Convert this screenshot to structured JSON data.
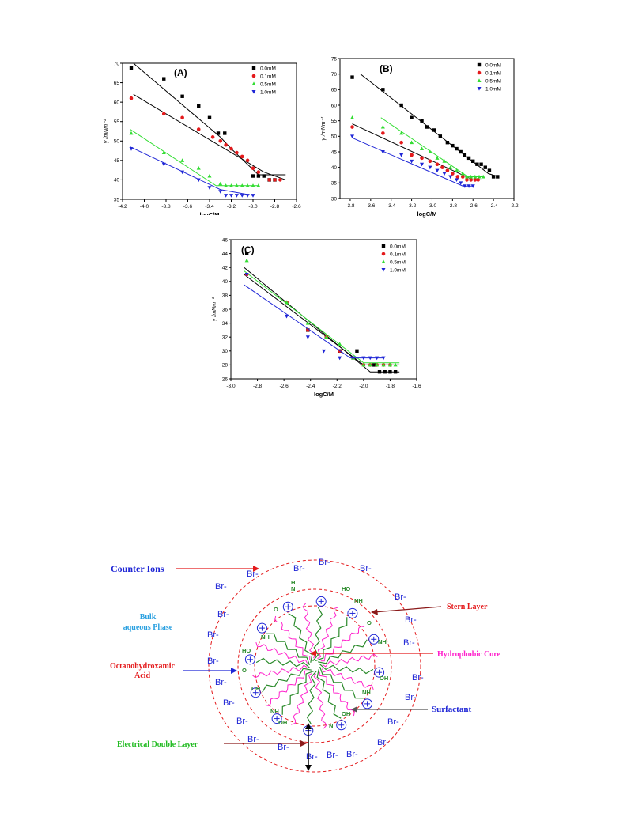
{
  "chart_data": [
    {
      "type": "scatter",
      "panel_label": "(A)",
      "xlabel": "logC/M",
      "ylabel": "γ /mNm⁻¹",
      "xlim": [
        -4.2,
        -2.6
      ],
      "ylim": [
        35,
        70
      ],
      "xticks": [
        "-4.2",
        "-4.0",
        "-3.8",
        "-3.6",
        "-3.4",
        "-3.2",
        "-3.0",
        "-2.8",
        "-2.6"
      ],
      "yticks": [
        "35",
        "40",
        "45",
        "50",
        "55",
        "60",
        "65",
        "70"
      ],
      "legend_position": "top-right",
      "series": [
        {
          "name": "0.0mM",
          "color": "#000000",
          "marker": "square",
          "x": [
            -4.12,
            -3.82,
            -3.65,
            -3.5,
            -3.4,
            -3.32,
            -3.26,
            -3.0,
            -2.95,
            -2.9,
            -2.85,
            -2.8
          ],
          "y": [
            68.8,
            66,
            61.5,
            59,
            56,
            52,
            52,
            41,
            41,
            41,
            40,
            40
          ],
          "fit": [
            [
              -4.1,
              70
            ],
            [
              -3.3,
              51
            ],
            [
              -3.2,
              48
            ],
            [
              -2.95,
              41.3
            ],
            [
              -2.7,
              41.3
            ]
          ]
        },
        {
          "name": "0.1mM",
          "color": "#e41a1c",
          "marker": "circle",
          "x": [
            -4.12,
            -3.82,
            -3.65,
            -3.5,
            -3.37,
            -3.3,
            -3.25,
            -3.2,
            -3.15,
            -3.1,
            -3.05,
            -3.0,
            -2.95,
            -2.85,
            -2.8,
            -2.75
          ],
          "y": [
            61,
            57,
            56,
            53,
            51,
            50,
            49,
            48,
            47,
            46,
            45,
            43,
            42,
            40,
            40,
            40
          ],
          "fit": [
            [
              -4.1,
              62
            ],
            [
              -2.9,
              42
            ],
            [
              -2.7,
              40
            ]
          ]
        },
        {
          "name": "0.5mM",
          "color": "#33dd33",
          "marker": "triangle-up",
          "x": [
            -4.12,
            -3.82,
            -3.65,
            -3.5,
            -3.4,
            -3.3,
            -3.25,
            -3.2,
            -3.15,
            -3.1,
            -3.05,
            -3.0,
            -2.95
          ],
          "y": [
            52,
            47,
            45,
            43,
            41,
            39,
            38.5,
            38.5,
            38.5,
            38.5,
            38.5,
            38.5,
            38.5
          ],
          "fit": [
            [
              -4.13,
              53
            ],
            [
              -3.34,
              38.5
            ],
            [
              -2.95,
              38.5
            ]
          ]
        },
        {
          "name": "1.0mM",
          "color": "#1f26d6",
          "marker": "triangle-down",
          "x": [
            -4.12,
            -3.82,
            -3.65,
            -3.5,
            -3.4,
            -3.3,
            -3.25,
            -3.2,
            -3.15,
            -3.1,
            -3.05,
            -3.0
          ],
          "y": [
            48,
            44,
            42,
            40,
            38,
            37,
            36,
            36,
            36,
            36,
            36,
            36
          ],
          "fit": [
            [
              -4.13,
              48.5
            ],
            [
              -3.3,
              37.5
            ],
            [
              -3.0,
              36
            ]
          ]
        }
      ]
    },
    {
      "type": "scatter",
      "panel_label": "(B)",
      "xlabel": "logC/M",
      "ylabel": "γ /mNm⁻¹",
      "xlim": [
        -3.9,
        -2.2
      ],
      "ylim": [
        30,
        75
      ],
      "xticks": [
        "-3.8",
        "-3.6",
        "-3.4",
        "-3.2",
        "-3.0",
        "-2.8",
        "-2.6",
        "-2.4",
        "-2.2"
      ],
      "yticks": [
        "30",
        "35",
        "40",
        "45",
        "50",
        "55",
        "60",
        "65",
        "70",
        "75"
      ],
      "legend_position": "top-right",
      "series": [
        {
          "name": "0.0mM",
          "color": "#000000",
          "marker": "square",
          "x": [
            -3.78,
            -3.48,
            -3.3,
            -3.2,
            -3.1,
            -3.05,
            -2.98,
            -2.92,
            -2.85,
            -2.8,
            -2.76,
            -2.72,
            -2.68,
            -2.64,
            -2.6,
            -2.56,
            -2.52,
            -2.48,
            -2.44,
            -2.4,
            -2.36
          ],
          "y": [
            69,
            65,
            60,
            56,
            55,
            53,
            52,
            50,
            48,
            47,
            46,
            45,
            44,
            43,
            42,
            41,
            41,
            40,
            39,
            37,
            37
          ],
          "fit": [
            [
              -3.7,
              70
            ],
            [
              -2.45,
              38
            ],
            [
              -2.35,
              37
            ]
          ]
        },
        {
          "name": "0.1mM",
          "color": "#e41a1c",
          "marker": "circle",
          "x": [
            -3.78,
            -3.48,
            -3.3,
            -3.2,
            -3.1,
            -3.02,
            -2.95,
            -2.9,
            -2.85,
            -2.8,
            -2.75,
            -2.7,
            -2.66,
            -2.62,
            -2.58,
            -2.55
          ],
          "y": [
            53,
            51,
            48,
            44,
            43,
            42,
            41,
            40,
            39,
            38,
            37,
            37,
            36,
            36,
            36,
            36
          ],
          "fit": [
            [
              -3.78,
              54
            ],
            [
              -2.6,
              36
            ],
            [
              -2.52,
              36
            ]
          ]
        },
        {
          "name": "0.5mM",
          "color": "#33dd33",
          "marker": "triangle-up",
          "x": [
            -3.78,
            -3.48,
            -3.3,
            -3.2,
            -3.1,
            -3.02,
            -2.95,
            -2.88,
            -2.82,
            -2.76,
            -2.7,
            -2.66,
            -2.62,
            -2.58,
            -2.54,
            -2.5
          ],
          "y": [
            56,
            53,
            51,
            48,
            46,
            45,
            43,
            42,
            40,
            39,
            38,
            37,
            37,
            37,
            37,
            37
          ],
          "fit": [
            [
              -3.5,
              56
            ],
            [
              -2.65,
              37
            ],
            [
              -2.5,
              37
            ]
          ]
        },
        {
          "name": "1.0mM",
          "color": "#1f26d6",
          "marker": "triangle-down",
          "x": [
            -3.78,
            -3.48,
            -3.3,
            -3.2,
            -3.1,
            -3.02,
            -2.95,
            -2.88,
            -2.82,
            -2.76,
            -2.72,
            -2.68,
            -2.64,
            -2.6
          ],
          "y": [
            50,
            45,
            44,
            42,
            41,
            40,
            39,
            38,
            37,
            36,
            35,
            34,
            34,
            34
          ],
          "fit": [
            [
              -3.78,
              49.5
            ],
            [
              -2.7,
              34
            ],
            [
              -2.6,
              34
            ]
          ]
        }
      ]
    },
    {
      "type": "scatter",
      "panel_label": "(C)",
      "xlabel": "logC/M",
      "ylabel": "γ /mNm⁻¹",
      "xlim": [
        -3.0,
        -1.6
      ],
      "ylim": [
        26,
        46
      ],
      "xticks": [
        "-3.0",
        "-2.8",
        "-2.6",
        "-2.4",
        "-2.2",
        "-2.0",
        "-1.8",
        "-1.6"
      ],
      "yticks": [
        "26",
        "28",
        "30",
        "32",
        "34",
        "36",
        "38",
        "40",
        "42",
        "44",
        "46"
      ],
      "legend_position": "top-right",
      "series": [
        {
          "name": "0.0mM",
          "color": "#000000",
          "marker": "square",
          "x": [
            -2.88,
            -2.58,
            -2.42,
            -2.28,
            -2.18,
            -2.05,
            -1.92,
            -1.88,
            -1.84,
            -1.8,
            -1.76
          ],
          "y": [
            44,
            37,
            33,
            32,
            30,
            30,
            28,
            27,
            27,
            27,
            27
          ],
          "fit": [
            [
              -2.9,
              42
            ],
            [
              -1.95,
              27
            ],
            [
              -1.73,
              27
            ]
          ]
        },
        {
          "name": "0.1mM",
          "color": "#e41a1c",
          "marker": "circle",
          "x": [
            -2.88,
            -2.58,
            -2.42,
            -2.28,
            -2.18,
            -2.08,
            -2.0,
            -1.95,
            -1.9,
            -1.85,
            -1.8
          ],
          "y": [
            41,
            37,
            33,
            32,
            30,
            29,
            28,
            28,
            28,
            28,
            28
          ],
          "fit": [
            [
              -2.9,
              41
            ],
            [
              -2.0,
              28
            ],
            [
              -1.73,
              28
            ]
          ]
        },
        {
          "name": "0.5mM",
          "color": "#33dd33",
          "marker": "triangle-up",
          "x": [
            -2.88,
            -2.58,
            -2.42,
            -2.28,
            -2.18,
            -2.08,
            -2.0,
            -1.95,
            -1.9,
            -1.85,
            -1.8,
            -1.76
          ],
          "y": [
            43,
            37,
            34,
            32,
            31,
            29,
            28,
            28,
            28,
            28,
            28,
            28
          ],
          "fit": [
            [
              -2.9,
              41.5
            ],
            [
              -2.0,
              28.3
            ],
            [
              -1.73,
              28.3
            ]
          ]
        },
        {
          "name": "1.0mM",
          "color": "#1f26d6",
          "marker": "triangle-down",
          "x": [
            -2.88,
            -2.58,
            -2.42,
            -2.3,
            -2.18,
            -2.08,
            -2.0,
            -1.95,
            -1.9,
            -1.85
          ],
          "y": [
            41,
            35,
            32,
            30,
            29,
            29,
            29,
            29,
            29,
            29
          ],
          "fit": [
            [
              -2.9,
              39.5
            ],
            [
              -2.1,
              29
            ],
            [
              -1.85,
              29
            ]
          ]
        }
      ]
    }
  ],
  "diagram": {
    "labels": {
      "counter_ions": "Counter Ions",
      "bulk_line1": "Bulk",
      "bulk_line2": "aqueous Phase",
      "octano_line1": "Octanohydroxamic",
      "octano_line2": "Acid",
      "electrical_double_layer": "Electrical Double Layer",
      "stern_layer": "Stern Layer",
      "hydrophobic_core": "Hydrophobic Core",
      "surfactant": "Surfactant"
    },
    "bromide": "Br-",
    "chem": {
      "ho": "HO",
      "nh": "NH",
      "oh": "OH",
      "o": "O",
      "n": "N",
      "h": "H"
    },
    "colors": {
      "counter_ions": "#1f26d6",
      "bulk": "#2aa0e0",
      "octano": "#e41a1c",
      "edl": "#22bb22",
      "stern": "#e41a1c",
      "hydrophobic": "#ff22cc",
      "surfactant": "#1f26d6",
      "dashed": "#e41a1c",
      "chain_green": "#2a8a2a",
      "chain_magenta": "#ff22cc"
    }
  }
}
